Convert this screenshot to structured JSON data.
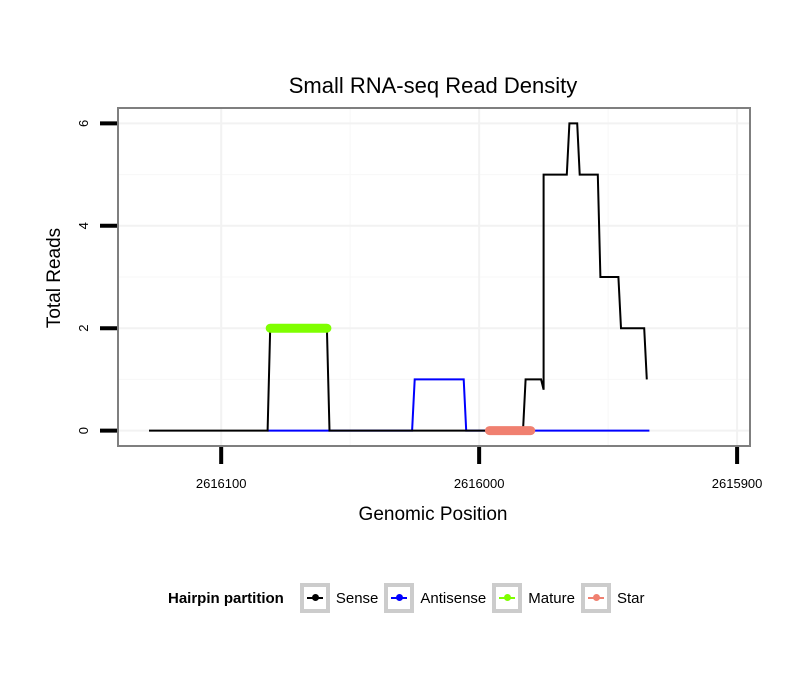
{
  "chart_data": {
    "type": "line",
    "title": "Small RNA-seq Read Density",
    "xlabel": "Genomic Position",
    "ylabel": "Total Reads",
    "x_reversed": true,
    "xlim": [
      2616140,
      2615895
    ],
    "ylim": [
      -0.3,
      6.3
    ],
    "xticks": [
      2616100,
      2616000,
      2615900
    ],
    "xtick_labels": [
      "2616100",
      "2616000",
      "2615900"
    ],
    "yticks": [
      0,
      2,
      4,
      6
    ],
    "ytick_labels": [
      "0",
      "2",
      "4",
      "6"
    ],
    "grid": true,
    "legend_position": "bottom",
    "legend_title": "Hairpin partition",
    "series": [
      {
        "name": "Sense",
        "color": "#000000",
        "style": "line",
        "points": [
          [
            2616128,
            0
          ],
          [
            2616082,
            0
          ],
          [
            2616081,
            2
          ],
          [
            2616059,
            2
          ],
          [
            2616058,
            0
          ],
          [
            2615983,
            0
          ],
          [
            2615982,
            1
          ],
          [
            2615976,
            1
          ],
          [
            2615975,
            0.8
          ],
          [
            2615975,
            5
          ],
          [
            2615966,
            5
          ],
          [
            2615965,
            6
          ],
          [
            2615962,
            6
          ],
          [
            2615961,
            5
          ],
          [
            2615954,
            5
          ],
          [
            2615953,
            3
          ],
          [
            2615946,
            3
          ],
          [
            2615945,
            2
          ],
          [
            2615936,
            2
          ],
          [
            2615935,
            1
          ]
        ]
      },
      {
        "name": "Antisense",
        "color": "#0000ff",
        "style": "line",
        "points": [
          [
            2616082,
            0
          ],
          [
            2616026,
            0
          ],
          [
            2616025,
            1
          ],
          [
            2616006,
            1
          ],
          [
            2616005,
            0
          ],
          [
            2615934,
            0
          ]
        ]
      },
      {
        "name": "Mature",
        "color": "#7fff00",
        "style": "band",
        "points": [
          [
            2616081,
            2
          ],
          [
            2616059,
            2
          ]
        ]
      },
      {
        "name": "Star",
        "color": "#f08070",
        "style": "band",
        "points": [
          [
            2615996,
            0
          ],
          [
            2615980,
            0
          ]
        ]
      }
    ]
  }
}
